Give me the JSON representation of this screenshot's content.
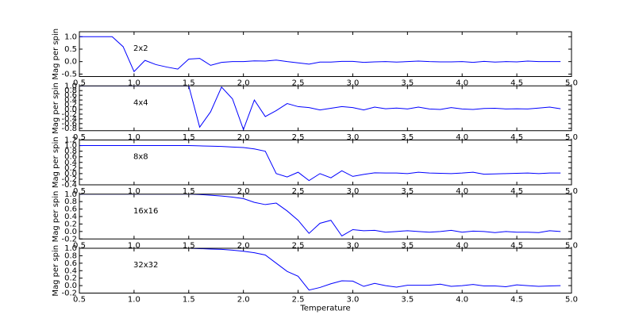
{
  "chart_data": [
    {
      "type": "line",
      "annotation": "2x2",
      "y_label": "Mag per spin",
      "color": "#0000ff",
      "x": [
        0.5,
        0.6,
        0.7,
        0.8,
        0.9,
        1.0,
        1.1,
        1.2,
        1.3,
        1.4,
        1.5,
        1.6,
        1.7,
        1.8,
        1.9,
        2.0,
        2.1,
        2.2,
        2.3,
        2.4,
        2.5,
        2.6,
        2.7,
        2.8,
        2.9,
        3.0,
        3.1,
        3.2,
        3.3,
        3.4,
        3.5,
        3.6,
        3.7,
        3.8,
        3.9,
        4.0,
        4.1,
        4.2,
        4.3,
        4.4,
        4.5,
        4.6,
        4.7,
        4.8,
        4.9
      ],
      "values": [
        1,
        1,
        1,
        1,
        0.6,
        -0.4,
        0.05,
        -0.12,
        -0.22,
        -0.3,
        0.1,
        0.13,
        -0.15,
        -0.03,
        0,
        0,
        0.03,
        0.02,
        0.06,
        0,
        -0.05,
        -0.1,
        -0.02,
        -0.02,
        0.01,
        0.01,
        -0.03,
        -0.01,
        0,
        -0.02,
        0,
        0.02,
        0,
        -0.01,
        -0.01,
        0,
        -0.03,
        0.01,
        -0.02,
        0,
        -0.01,
        0.02,
        0,
        0,
        0
      ],
      "xlim": [
        0.5,
        5.0
      ],
      "xticks": [
        0.5,
        {
          "value": 1,
          "label": "1.0"
        },
        1.5,
        {
          "value": 2,
          "label": "2.0"
        },
        2.5,
        {
          "value": 3,
          "label": "3.0"
        },
        3.5,
        {
          "value": 4,
          "label": "4.0"
        },
        4.5,
        {
          "value": 5,
          "label": "5.0"
        }
      ],
      "ylim": [
        -0.6,
        1.2
      ],
      "yticks": [
        -0.5,
        {
          "value": 0,
          "label": "0.0"
        },
        0.5,
        {
          "value": 1,
          "label": "1.0"
        }
      ]
    },
    {
      "type": "line",
      "annotation": "4x4",
      "y_label": "Mag per spin",
      "color": "#0000ff",
      "x": [
        0.5,
        0.6,
        0.7,
        0.8,
        0.9,
        1.0,
        1.1,
        1.2,
        1.3,
        1.4,
        1.5,
        1.6,
        1.7,
        1.8,
        1.9,
        2.0,
        2.1,
        2.2,
        2.3,
        2.4,
        2.5,
        2.6,
        2.7,
        2.8,
        2.9,
        3.0,
        3.1,
        3.2,
        3.3,
        3.4,
        3.5,
        3.6,
        3.7,
        3.8,
        3.9,
        4.0,
        4.1,
        4.2,
        4.3,
        4.4,
        4.5,
        4.6,
        4.7,
        4.8,
        4.9
      ],
      "values": [
        1,
        1,
        1,
        1,
        1,
        1,
        1,
        1,
        1,
        1,
        1,
        -0.75,
        -0.1,
        0.95,
        0.45,
        -0.85,
        0.4,
        -0.3,
        -0.05,
        0.25,
        0.12,
        0.08,
        -0.02,
        0.05,
        0.12,
        0.08,
        -0.02,
        0.1,
        0.03,
        0.06,
        0.02,
        0.1,
        0.02,
        0,
        0.08,
        0.02,
        0,
        0.04,
        0.05,
        0.02,
        0.03,
        0.02,
        0.06,
        0.1,
        0.03
      ],
      "xlim": [
        0.5,
        5.0
      ],
      "xticks": [
        0.5,
        {
          "value": 1,
          "label": "1.0"
        },
        1.5,
        {
          "value": 2,
          "label": "2.0"
        },
        2.5,
        {
          "value": 3,
          "label": "3.0"
        },
        3.5,
        {
          "value": 4,
          "label": "4.0"
        },
        4.5,
        {
          "value": 5,
          "label": "5.0"
        }
      ],
      "ylim": [
        -0.9,
        1.0
      ],
      "yticks": [
        -0.8,
        -0.6,
        -0.4,
        -0.2,
        {
          "value": 0,
          "label": "0.0"
        },
        0.2,
        0.4,
        0.6,
        0.8,
        {
          "value": 1,
          "label": "1.0"
        }
      ]
    },
    {
      "type": "line",
      "annotation": "8x8",
      "y_label": "Mag per spin",
      "color": "#0000ff",
      "x": [
        0.5,
        0.6,
        0.7,
        0.8,
        0.9,
        1.0,
        1.1,
        1.2,
        1.3,
        1.4,
        1.5,
        1.6,
        1.7,
        1.8,
        1.9,
        2.0,
        2.1,
        2.2,
        2.3,
        2.4,
        2.5,
        2.6,
        2.7,
        2.8,
        2.9,
        3.0,
        3.1,
        3.2,
        3.3,
        3.4,
        3.5,
        3.6,
        3.7,
        3.8,
        3.9,
        4.0,
        4.1,
        4.2,
        4.3,
        4.4,
        4.5,
        4.6,
        4.7,
        4.8,
        4.9
      ],
      "values": [
        1,
        1,
        1,
        1,
        1,
        1,
        1,
        1,
        1,
        1,
        1,
        0.99,
        0.98,
        0.97,
        0.95,
        0.93,
        0.88,
        0.8,
        0,
        -0.12,
        0.05,
        -0.25,
        0,
        -0.15,
        0.1,
        -0.1,
        -0.03,
        0.03,
        0.02,
        0.02,
        0,
        0.05,
        0.02,
        0.01,
        0,
        0.02,
        0.05,
        -0.02,
        -0.01,
        0,
        0.01,
        0.02,
        0,
        0.02,
        0.02
      ],
      "xlim": [
        0.5,
        5.0
      ],
      "xticks": [
        0.5,
        {
          "value": 1,
          "label": "1.0"
        },
        1.5,
        {
          "value": 2,
          "label": "2.0"
        },
        2.5,
        {
          "value": 3,
          "label": "3.0"
        },
        3.5,
        {
          "value": 4,
          "label": "4.0"
        },
        4.5,
        {
          "value": 5,
          "label": "5.0"
        }
      ],
      "ylim": [
        -0.4,
        1.2
      ],
      "yticks": [
        -0.4,
        -0.2,
        {
          "value": 0,
          "label": "0.0"
        },
        0.2,
        0.4,
        0.6,
        0.8,
        {
          "value": 1,
          "label": "1.0"
        },
        1.2
      ]
    },
    {
      "type": "line",
      "annotation": "16x16",
      "y_label": "Mag per spin",
      "color": "#0000ff",
      "x": [
        0.5,
        0.6,
        0.7,
        0.8,
        0.9,
        1.0,
        1.1,
        1.2,
        1.3,
        1.4,
        1.5,
        1.6,
        1.7,
        1.8,
        1.9,
        2.0,
        2.1,
        2.2,
        2.3,
        2.4,
        2.5,
        2.6,
        2.7,
        2.8,
        2.9,
        3.0,
        3.1,
        3.2,
        3.3,
        3.4,
        3.5,
        3.6,
        3.7,
        3.8,
        3.9,
        4.0,
        4.1,
        4.2,
        4.3,
        4.4,
        4.5,
        4.6,
        4.7,
        4.8,
        4.9
      ],
      "values": [
        1,
        1,
        1,
        1,
        1,
        1,
        1,
        1,
        1,
        1,
        1,
        0.99,
        0.97,
        0.95,
        0.92,
        0.88,
        0.78,
        0.72,
        0.76,
        0.55,
        0.3,
        -0.05,
        0.22,
        0.3,
        -0.12,
        0.05,
        0.02,
        0.03,
        -0.02,
        0,
        0.02,
        0,
        -0.02,
        0,
        0.03,
        -0.02,
        0.01,
        0,
        -0.03,
        0,
        -0.02,
        -0.02,
        -0.03,
        0.02,
        0
      ],
      "xlim": [
        0.5,
        5.0
      ],
      "xticks": [
        0.5,
        {
          "value": 1,
          "label": "1.0"
        },
        1.5,
        {
          "value": 2,
          "label": "2.0"
        },
        2.5,
        {
          "value": 3,
          "label": "3.0"
        },
        3.5,
        {
          "value": 4,
          "label": "4.0"
        },
        4.5,
        {
          "value": 5,
          "label": "5.0"
        }
      ],
      "ylim": [
        -0.2,
        1.0
      ],
      "yticks": [
        -0.2,
        {
          "value": 0,
          "label": "0.0"
        },
        0.2,
        0.4,
        0.6,
        0.8,
        {
          "value": 1,
          "label": "1.0"
        }
      ]
    },
    {
      "type": "line",
      "annotation": "32x32",
      "y_label": "Mag per spin",
      "x_label": "Temperature",
      "color": "#0000ff",
      "x": [
        0.5,
        0.6,
        0.7,
        0.8,
        0.9,
        1.0,
        1.1,
        1.2,
        1.3,
        1.4,
        1.5,
        1.6,
        1.7,
        1.8,
        1.9,
        2.0,
        2.1,
        2.2,
        2.3,
        2.4,
        2.5,
        2.6,
        2.7,
        2.8,
        2.9,
        3.0,
        3.1,
        3.2,
        3.3,
        3.4,
        3.5,
        3.6,
        3.7,
        3.8,
        3.9,
        4.0,
        4.1,
        4.2,
        4.3,
        4.4,
        4.5,
        4.6,
        4.7,
        4.8,
        4.9
      ],
      "values": [
        1,
        1,
        1,
        1,
        1,
        1,
        1,
        1,
        1,
        1,
        1,
        0.99,
        0.98,
        0.97,
        0.95,
        0.92,
        0.88,
        0.82,
        0.6,
        0.38,
        0.25,
        -0.12,
        -0.05,
        0.05,
        0.13,
        0.12,
        -0.02,
        0.06,
        0,
        -0.04,
        0.01,
        0.01,
        0.01,
        0.04,
        -0.02,
        0,
        0.03,
        -0.01,
        -0.01,
        -0.03,
        0.02,
        0,
        -0.02,
        -0.01,
        0
      ],
      "xlim": [
        0.5,
        5.0
      ],
      "xticks": [
        0.5,
        {
          "value": 1,
          "label": "1.0"
        },
        1.5,
        {
          "value": 2,
          "label": "2.0"
        },
        2.5,
        {
          "value": 3,
          "label": "3.0"
        },
        3.5,
        {
          "value": 4,
          "label": "4.0"
        },
        4.5,
        {
          "value": 5,
          "label": "5.0"
        }
      ],
      "ylim": [
        -0.2,
        1.0
      ],
      "yticks": [
        -0.2,
        {
          "value": 0,
          "label": "0.0"
        },
        0.2,
        0.4,
        0.6,
        0.8,
        {
          "value": 1,
          "label": "1.0"
        }
      ]
    }
  ]
}
